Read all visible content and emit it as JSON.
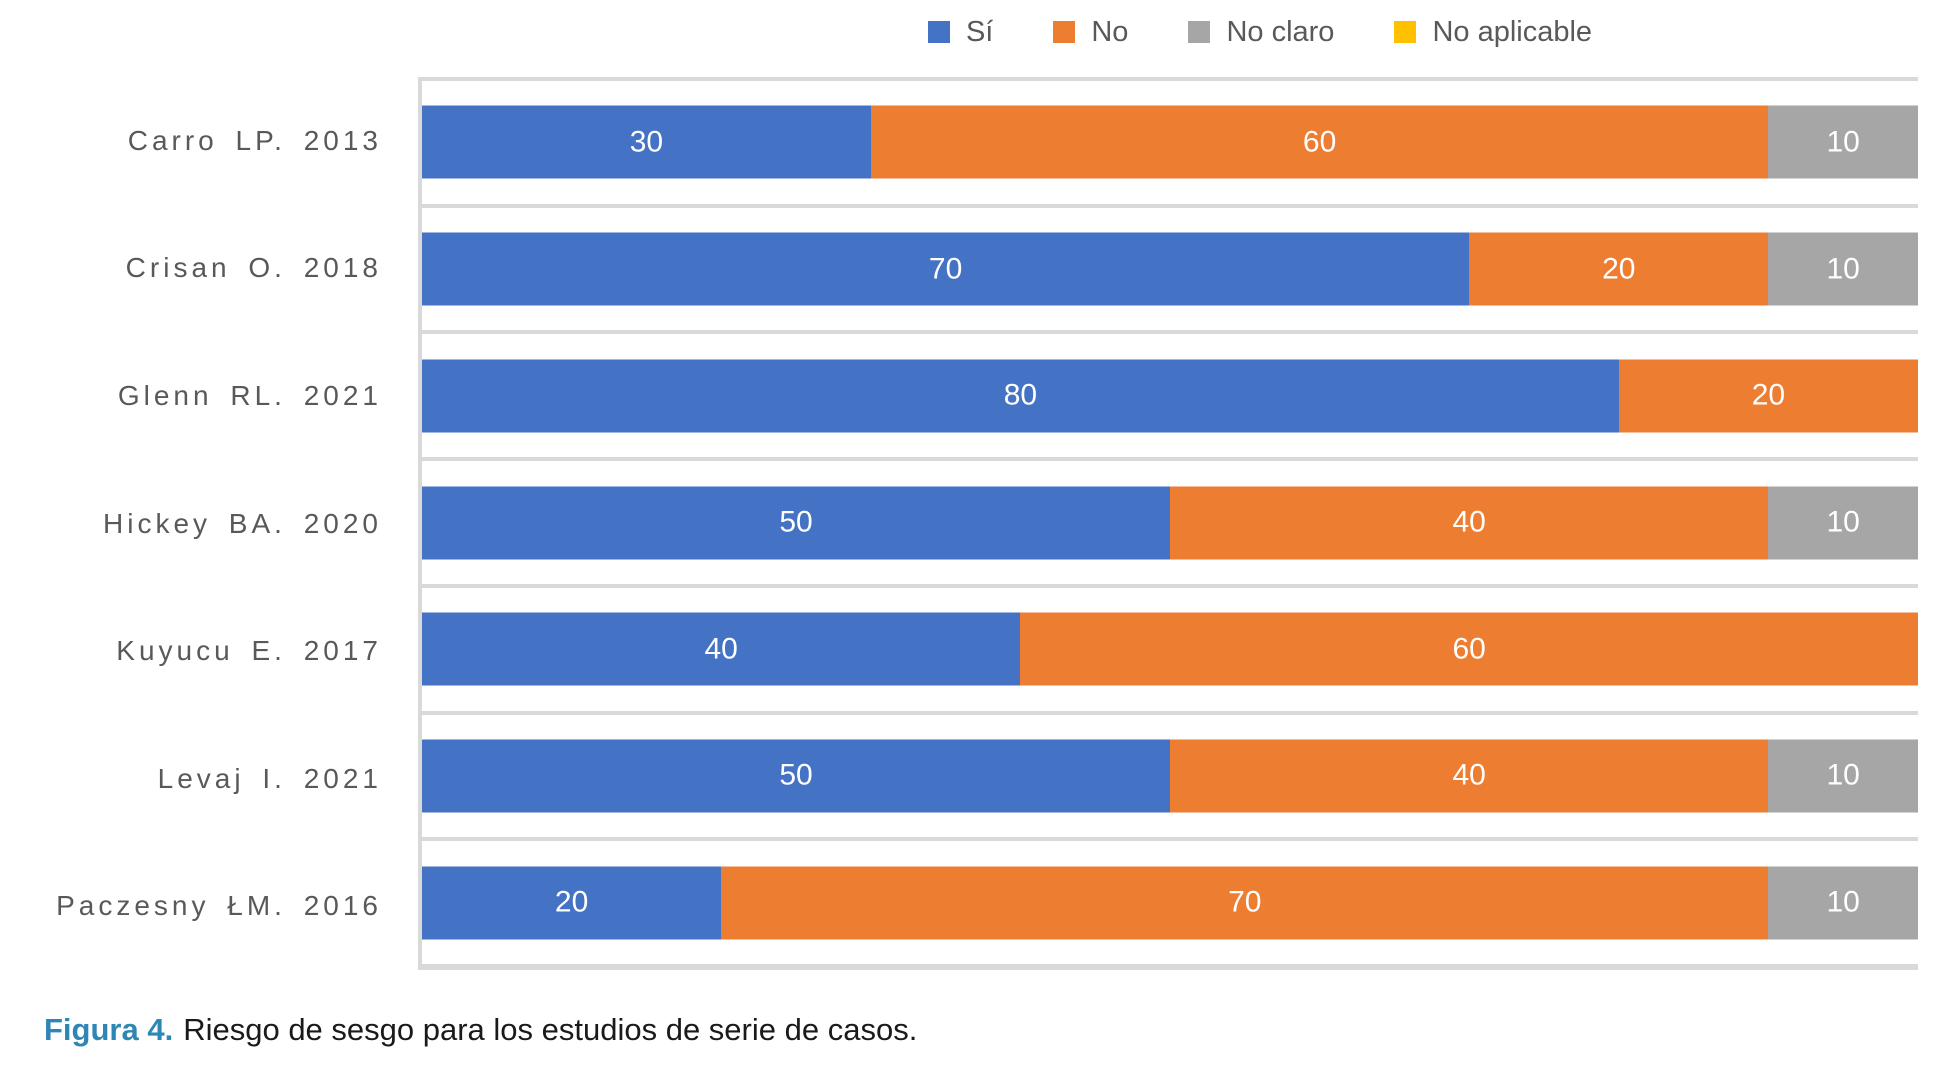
{
  "legend": {
    "items": [
      {
        "label": "Sí",
        "color": "#4472C4"
      },
      {
        "label": "No",
        "color": "#ED7D31"
      },
      {
        "label": "No claro",
        "color": "#A6A6A6"
      },
      {
        "label": "No aplicable",
        "color": "#FFC000"
      }
    ]
  },
  "chart_data": {
    "type": "bar",
    "orientation": "horizontal",
    "stacked": true,
    "categories": [
      "Carro LP. 2013",
      "Crisan O. 2018",
      "Glenn RL. 2021",
      "Hickey BA. 2020",
      "Kuyucu E. 2017",
      "Levaj I. 2021",
      "Paczesny ŁM. 2016"
    ],
    "series": [
      {
        "name": "Sí",
        "color": "#4472C4",
        "values": [
          30,
          70,
          80,
          50,
          40,
          50,
          20
        ]
      },
      {
        "name": "No",
        "color": "#ED7D31",
        "values": [
          60,
          20,
          20,
          40,
          60,
          40,
          70
        ]
      },
      {
        "name": "No claro",
        "color": "#A6A6A6",
        "values": [
          10,
          10,
          0,
          10,
          0,
          10,
          10
        ]
      },
      {
        "name": "No aplicable",
        "color": "#FFC000",
        "values": [
          0,
          0,
          0,
          0,
          0,
          0,
          0
        ]
      }
    ],
    "xlim": [
      0,
      100
    ],
    "value_labels_shown": true,
    "zero_values_hidden": true,
    "grid": "horizontal category separators only",
    "legend_position": "top",
    "gridline_color": "#D9D9D9",
    "value_label_color": "#FFFFFF",
    "category_label_color": "#595959"
  },
  "caption": {
    "label": "Figura 4.",
    "text": "Riesgo de sesgo para los estudios de serie de casos.",
    "label_color": "#2E86B5"
  }
}
